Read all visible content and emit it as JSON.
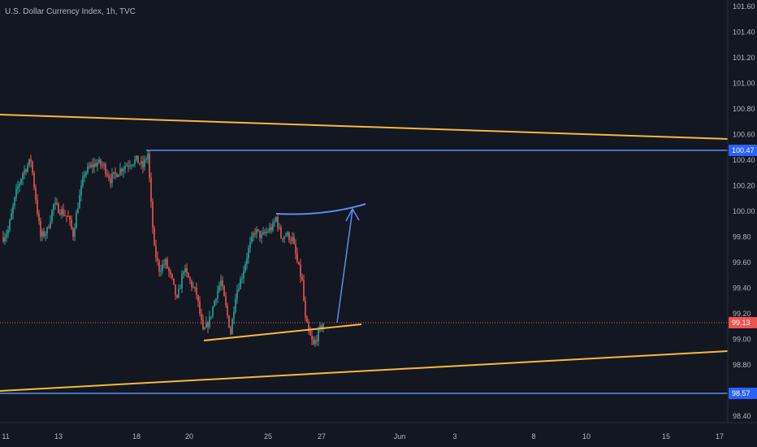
{
  "chart_data": {
    "type": "candlestick",
    "title": "U.S. Dollar Currency Index, 1h, TVC",
    "x_ticks": [
      "11",
      "13",
      "18",
      "20",
      "25",
      "27",
      "Jun",
      "3",
      "8",
      "10",
      "15",
      "17"
    ],
    "y_ticks": [
      "101.60",
      "101.40",
      "101.20",
      "101.00",
      "100.80",
      "100.60",
      "100.40",
      "100.20",
      "100.00",
      "99.80",
      "99.60",
      "99.40",
      "99.20",
      "99.00",
      "98.80",
      "98.60",
      "98.40"
    ],
    "ylim": [
      98.3,
      101.7
    ],
    "current_price": "99.13",
    "price_labels": [
      {
        "value": "100.47",
        "color": "#2962ff"
      },
      {
        "value": "99.13",
        "color": "#ef5350"
      },
      {
        "value": "98.57",
        "color": "#2962ff"
      }
    ],
    "horizontal_levels": [
      100.47,
      98.57
    ],
    "up_color": "#26a69a",
    "down_color": "#ef5350",
    "trend_color": "#f6b93b",
    "level_color": "#5b8dee"
  }
}
